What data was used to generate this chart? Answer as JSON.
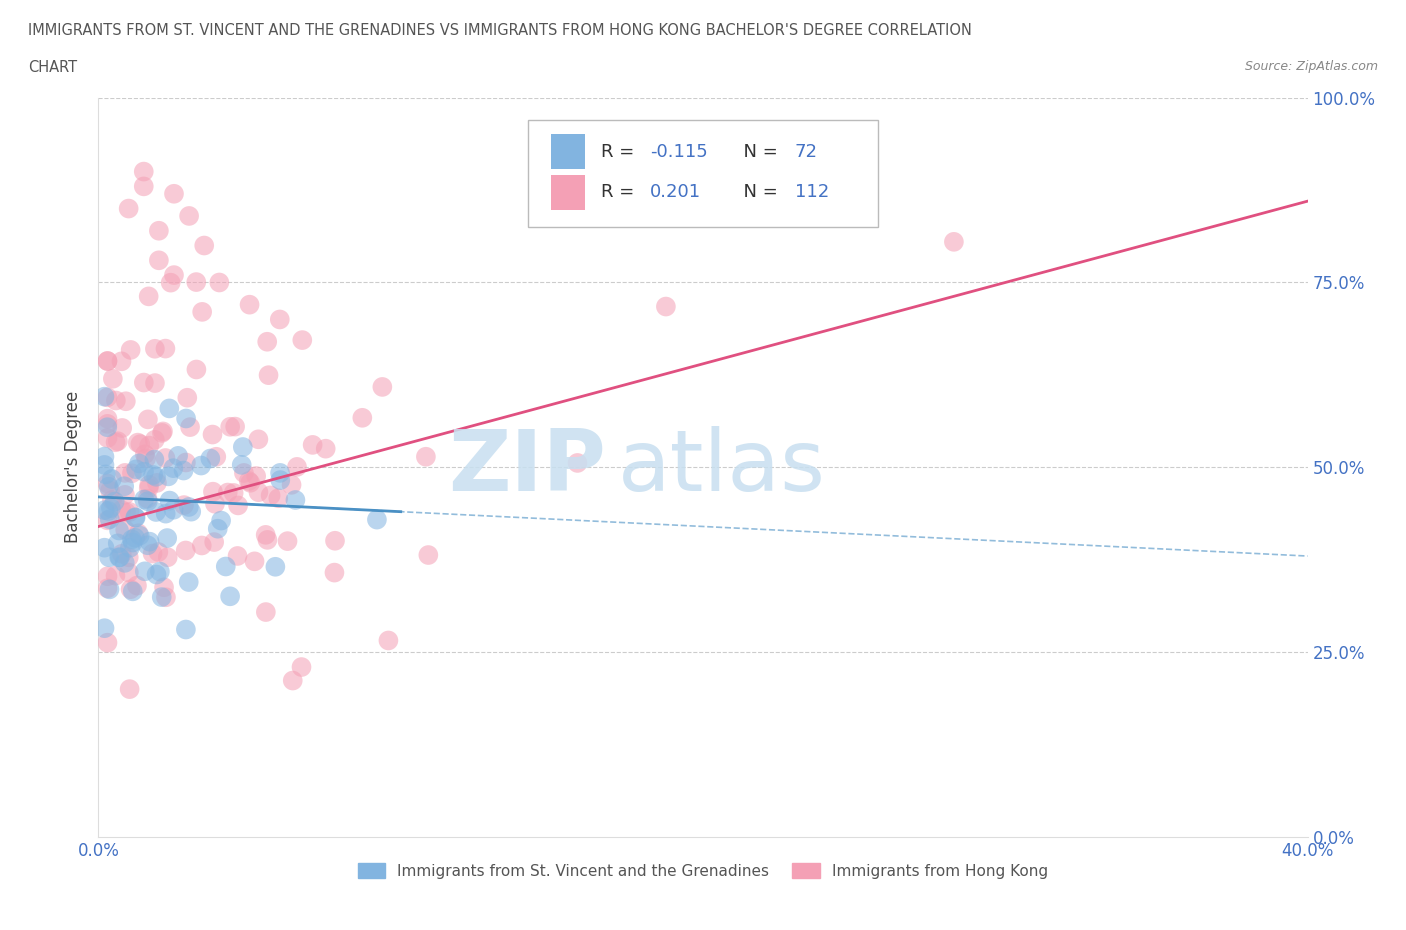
{
  "title_line1": "IMMIGRANTS FROM ST. VINCENT AND THE GRENADINES VS IMMIGRANTS FROM HONG KONG BACHELOR'S DEGREE CORRELATION",
  "title_line2": "CHART",
  "source_text": "Source: ZipAtlas.com",
  "ylabel": "Bachelor's Degree",
  "r1": -0.115,
  "n1": 72,
  "r2": 0.201,
  "n2": 112,
  "color_blue": "#82b4e0",
  "color_pink": "#f4a0b5",
  "color_blue_line": "#4a90c4",
  "color_pink_line": "#e05080",
  "xlim": [
    0.0,
    0.4
  ],
  "ylim": [
    0.0,
    1.0
  ],
  "ytick_vals": [
    0.0,
    0.25,
    0.5,
    0.75,
    1.0
  ],
  "ytick_labels": [
    "0.0%",
    "25.0%",
    "50.0%",
    "75.0%",
    "100.0%"
  ],
  "watermark_zip": "ZIP",
  "watermark_atlas": "atlas",
  "legend1_label": "Immigrants from St. Vincent and the Grenadines",
  "legend2_label": "Immigrants from Hong Kong",
  "pink_line_x0": 0.0,
  "pink_line_y0": 0.42,
  "pink_line_x1": 0.4,
  "pink_line_y1": 0.86,
  "blue_line_solid_x0": 0.0,
  "blue_line_solid_y0": 0.46,
  "blue_line_solid_x1": 0.1,
  "blue_line_solid_y1": 0.44,
  "blue_line_dash_x0": 0.0,
  "blue_line_dash_y0": 0.46,
  "blue_line_dash_x1": 0.4,
  "blue_line_dash_y1": 0.38
}
